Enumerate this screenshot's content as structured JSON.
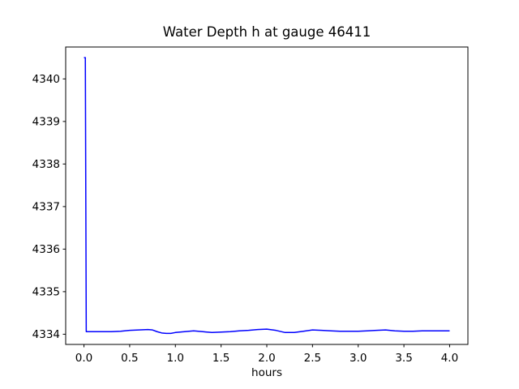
{
  "window": {
    "background_color": "#ffffff"
  },
  "chart_data": {
    "type": "line",
    "title": "Water Depth h at gauge 46411",
    "xlabel": "hours",
    "ylabel": "",
    "xlim": [
      -0.2,
      4.2
    ],
    "ylim": [
      4333.76,
      4340.75
    ],
    "xtick_values": [
      0.0,
      0.5,
      1.0,
      1.5,
      2.0,
      2.5,
      3.0,
      3.5,
      4.0
    ],
    "xtick_labels": [
      "0.0",
      "0.5",
      "1.0",
      "1.5",
      "2.0",
      "2.5",
      "3.0",
      "3.5",
      "4.0"
    ],
    "ytick_values": [
      4334,
      4335,
      4336,
      4337,
      4338,
      4339,
      4340
    ],
    "ytick_labels": [
      "4334",
      "4335",
      "4336",
      "4337",
      "4338",
      "4339",
      "4340"
    ],
    "grid": false,
    "legend": null,
    "line_color": "#0000ff",
    "axes_color": "#000000",
    "series": [
      {
        "name": "water-depth-h",
        "x": [
          0.0,
          0.015,
          0.025,
          0.05,
          0.1,
          0.2,
          0.3,
          0.4,
          0.5,
          0.6,
          0.7,
          0.75,
          0.8,
          0.85,
          0.9,
          0.95,
          1.0,
          1.1,
          1.2,
          1.3,
          1.4,
          1.5,
          1.6,
          1.7,
          1.8,
          1.9,
          2.0,
          2.1,
          2.2,
          2.3,
          2.4,
          2.5,
          2.6,
          2.7,
          2.8,
          2.9,
          3.0,
          3.1,
          3.2,
          3.3,
          3.4,
          3.5,
          3.6,
          3.7,
          3.8,
          3.9,
          4.0
        ],
        "y": [
          4340.5,
          4340.5,
          4334.06,
          4334.06,
          4334.06,
          4334.06,
          4334.06,
          4334.07,
          4334.09,
          4334.1,
          4334.11,
          4334.1,
          4334.06,
          4334.03,
          4334.02,
          4334.02,
          4334.04,
          4334.06,
          4334.08,
          4334.06,
          4334.04,
          4334.05,
          4334.06,
          4334.08,
          4334.09,
          4334.11,
          4334.12,
          4334.09,
          4334.04,
          4334.04,
          4334.07,
          4334.1,
          4334.09,
          4334.08,
          4334.07,
          4334.07,
          4334.07,
          4334.08,
          4334.09,
          4334.1,
          4334.08,
          4334.07,
          4334.07,
          4334.08,
          4334.08,
          4334.08,
          4334.08
        ]
      }
    ]
  }
}
